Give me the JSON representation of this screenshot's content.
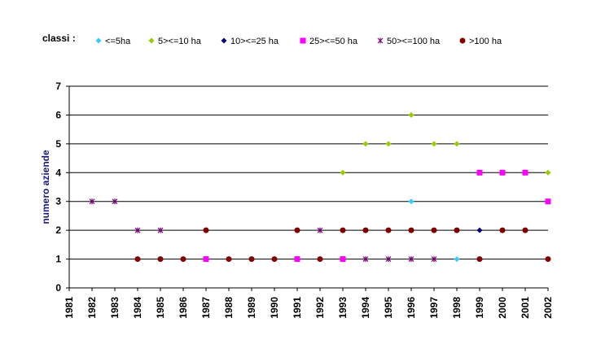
{
  "chart_data": {
    "type": "scatter",
    "legend_title": "classi :",
    "ylabel": "numero aziende",
    "xlabel": "",
    "ylim": [
      0,
      7
    ],
    "yticks": [
      0,
      1,
      2,
      3,
      4,
      5,
      6,
      7
    ],
    "xlim": [
      1981,
      2002
    ],
    "xticks": [
      1981,
      1982,
      1983,
      1984,
      1985,
      1986,
      1987,
      1988,
      1989,
      1990,
      1991,
      1992,
      1993,
      1994,
      1995,
      1996,
      1997,
      1998,
      1999,
      2000,
      2001,
      2002
    ],
    "grid": true,
    "legend_position": "top",
    "series": [
      {
        "name": "<=5ha",
        "color": "#33ccff",
        "marker": "diamond",
        "points": [
          [
            1996,
            3
          ],
          [
            1998,
            1
          ]
        ]
      },
      {
        "name": "5><=10 ha",
        "color": "#99cc00",
        "marker": "diamond",
        "points": [
          [
            1993,
            4
          ],
          [
            1994,
            5
          ],
          [
            1995,
            5
          ],
          [
            1996,
            6
          ],
          [
            1997,
            5
          ],
          [
            1998,
            5
          ],
          [
            2002,
            4
          ]
        ]
      },
      {
        "name": "10><=25 ha",
        "color": "#000080",
        "marker": "diamond",
        "points": [
          [
            1999,
            2
          ]
        ]
      },
      {
        "name": "25><=50 ha",
        "color": "#ff00ff",
        "marker": "square",
        "points": [
          [
            1987,
            1
          ],
          [
            1991,
            1
          ],
          [
            1993,
            1
          ],
          [
            1999,
            4
          ],
          [
            2000,
            4
          ],
          [
            2001,
            4
          ],
          [
            2002,
            3
          ]
        ]
      },
      {
        "name": "50><=100 ha",
        "color": "#800080",
        "marker": "star",
        "points": [
          [
            1982,
            3
          ],
          [
            1983,
            3
          ],
          [
            1984,
            2
          ],
          [
            1985,
            2
          ],
          [
            1992,
            2
          ],
          [
            1994,
            1
          ],
          [
            1995,
            1
          ],
          [
            1996,
            1
          ],
          [
            1997,
            1
          ]
        ]
      },
      {
        "name": ">100 ha",
        "color": "#800000",
        "marker": "circle",
        "points": [
          [
            1984,
            1
          ],
          [
            1985,
            1
          ],
          [
            1986,
            1
          ],
          [
            1987,
            2
          ],
          [
            1988,
            1
          ],
          [
            1989,
            1
          ],
          [
            1990,
            1
          ],
          [
            1991,
            2
          ],
          [
            1992,
            1
          ],
          [
            1993,
            2
          ],
          [
            1994,
            2
          ],
          [
            1995,
            2
          ],
          [
            1996,
            2
          ],
          [
            1997,
            2
          ],
          [
            1998,
            2
          ],
          [
            1999,
            1
          ],
          [
            2000,
            2
          ],
          [
            2001,
            2
          ],
          [
            2002,
            1
          ]
        ]
      }
    ]
  }
}
